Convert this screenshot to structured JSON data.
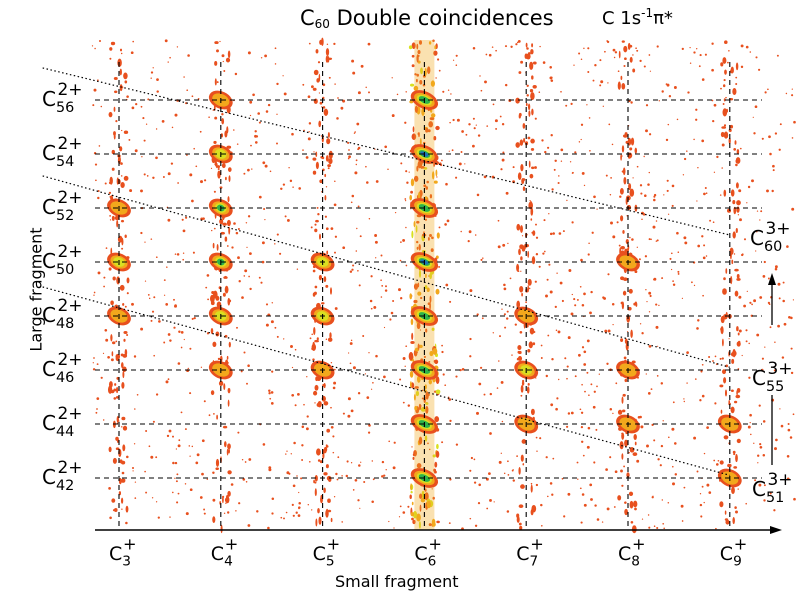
{
  "chart_data": {
    "type": "heatmap",
    "title": {
      "prefix": "C",
      "sub": "60",
      "text": "Double coincidences"
    },
    "subtitle": {
      "a": "C 1s",
      "sup": "-1",
      "b": "π*"
    },
    "xlabel": "Small fragment",
    "ylabel": "Large fragment",
    "x_ticks": [
      {
        "base": "C",
        "sub": "3",
        "sup": "+"
      },
      {
        "base": "C",
        "sub": "4",
        "sup": "+"
      },
      {
        "base": "C",
        "sub": "5",
        "sup": "+"
      },
      {
        "base": "C",
        "sub": "6",
        "sup": "+"
      },
      {
        "base": "C",
        "sub": "7",
        "sup": "+"
      },
      {
        "base": "C",
        "sub": "8",
        "sup": "+"
      },
      {
        "base": "C",
        "sub": "9",
        "sup": "+"
      }
    ],
    "y_ticks": [
      {
        "base": "C",
        "sub": "56",
        "sup": "2+"
      },
      {
        "base": "C",
        "sub": "54",
        "sup": "2+"
      },
      {
        "base": "C",
        "sub": "52",
        "sup": "2+"
      },
      {
        "base": "C",
        "sub": "50",
        "sup": "2+"
      },
      {
        "base": "C",
        "sub": "48",
        "sup": "2+"
      },
      {
        "base": "C",
        "sub": "46",
        "sup": "2+"
      },
      {
        "base": "C",
        "sub": "44",
        "sup": "2+"
      },
      {
        "base": "C",
        "sub": "42",
        "sup": "2+"
      }
    ],
    "series": [
      {
        "name": "C60 3+",
        "sup": "3+",
        "label": {
          "base": "C",
          "sub": "60",
          "sup": "3+"
        },
        "points": [
          [
            3,
            56.5
          ],
          [
            9,
            51
          ]
        ]
      },
      {
        "name": "C55 3+",
        "sup": "3+",
        "label": {
          "base": "C",
          "sub": "55",
          "sup": "3+"
        },
        "points": [
          [
            3,
            52.4
          ],
          [
            9,
            46.1
          ]
        ]
      },
      {
        "name": "C51 3+",
        "sup": "3+",
        "label": {
          "base": "C",
          "sub": "51",
          "sup": "3+"
        },
        "points": [
          [
            3,
            48.3
          ],
          [
            9,
            42.1
          ]
        ]
      }
    ],
    "islands": [
      {
        "x": 3,
        "y": 52,
        "i": 1
      },
      {
        "x": 3,
        "y": 50,
        "i": 2
      },
      {
        "x": 3,
        "y": 48,
        "i": 1
      },
      {
        "x": 4,
        "y": 56,
        "i": 1
      },
      {
        "x": 4,
        "y": 54,
        "i": 2
      },
      {
        "x": 4,
        "y": 52,
        "i": 3
      },
      {
        "x": 4,
        "y": 50,
        "i": 3
      },
      {
        "x": 4,
        "y": 48,
        "i": 2
      },
      {
        "x": 4,
        "y": 46,
        "i": 1
      },
      {
        "x": 5,
        "y": 50,
        "i": 2
      },
      {
        "x": 5,
        "y": 48,
        "i": 2
      },
      {
        "x": 5,
        "y": 46,
        "i": 1
      },
      {
        "x": 6,
        "y": 56,
        "i": 3
      },
      {
        "x": 6,
        "y": 54,
        "i": 4
      },
      {
        "x": 6,
        "y": 52,
        "i": 3
      },
      {
        "x": 6,
        "y": 50,
        "i": 4
      },
      {
        "x": 6,
        "y": 48,
        "i": 3
      },
      {
        "x": 6,
        "y": 46,
        "i": 3
      },
      {
        "x": 6,
        "y": 44,
        "i": 3
      },
      {
        "x": 6,
        "y": 42,
        "i": 3
      },
      {
        "x": 7,
        "y": 48,
        "i": 1
      },
      {
        "x": 7,
        "y": 46,
        "i": 2
      },
      {
        "x": 7,
        "y": 44,
        "i": 1
      },
      {
        "x": 8,
        "y": 50,
        "i": 1
      },
      {
        "x": 8,
        "y": 46,
        "i": 1
      },
      {
        "x": 8,
        "y": 44,
        "i": 1
      },
      {
        "x": 9,
        "y": 44,
        "i": 1
      },
      {
        "x": 9,
        "y": 42,
        "i": 1
      }
    ],
    "grid": true,
    "colors": {
      "low": "#e8501e",
      "mid": "#f2a81c",
      "high": "#d9e021",
      "peak": "#2db34a",
      "core": "#1c72b8",
      "grid": "#000000"
    }
  }
}
